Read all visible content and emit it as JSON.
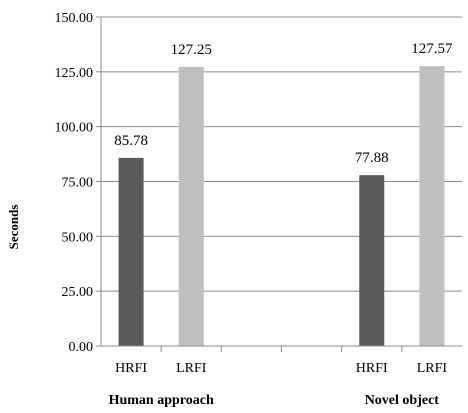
{
  "chart_data": {
    "type": "bar",
    "ylabel": "Seconds",
    "ylim": [
      0,
      150
    ],
    "yticks": [
      "0.00",
      "25.00",
      "50.00",
      "75.00",
      "100.00",
      "125.00",
      "150.00"
    ],
    "ytick_values": [
      0,
      25,
      50,
      75,
      100,
      125,
      150
    ],
    "grid": true,
    "groups": [
      {
        "label": "Human approach",
        "bars": [
          {
            "category": "HRFI",
            "value": 85.78,
            "label": "85.78",
            "color": "#595959"
          },
          {
            "category": "LRFI",
            "value": 127.25,
            "label": "127.25",
            "color": "#bfbfbf"
          }
        ]
      },
      {
        "label": "Novel object",
        "bars": [
          {
            "category": "HRFI",
            "value": 77.88,
            "label": "77.88",
            "color": "#595959"
          },
          {
            "category": "LRFI",
            "value": 127.57,
            "label": "127.57",
            "color": "#bfbfbf"
          }
        ]
      }
    ]
  }
}
